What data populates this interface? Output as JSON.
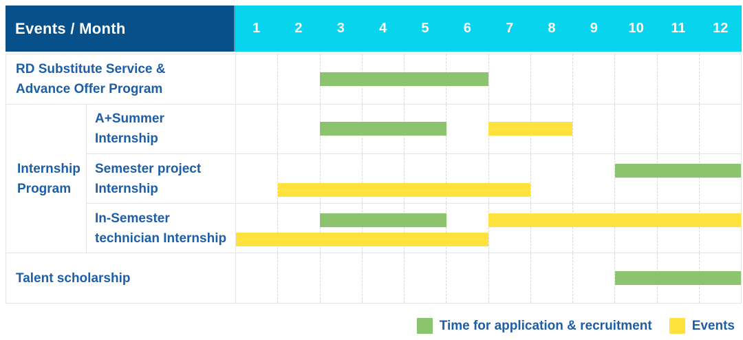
{
  "colors": {
    "header_navy": "#07508a",
    "header_cyan": "#08d4ee",
    "header_separator": "#5d90b8",
    "application_green": "#8cc46d",
    "event_yellow": "#ffe23d",
    "label_blue": "#1d5ea6",
    "grid_line": "#e5e5e5"
  },
  "header": {
    "title": "Events / Month",
    "months": [
      "1",
      "2",
      "3",
      "4",
      "5",
      "6",
      "7",
      "8",
      "9",
      "10",
      "11",
      "12"
    ]
  },
  "sections": [
    {
      "type": "single",
      "row": {
        "id": "rd-substitute-service",
        "label": "RD Substitute Service & Advance Offer Program",
        "label_lines": [
          "RD Substitute Service &",
          "Advance Offer Program"
        ],
        "bars": [
          {
            "kind": "application",
            "start_month": 3,
            "end_month": 6,
            "lane": "center"
          }
        ]
      }
    },
    {
      "type": "group",
      "label": "Internship Program",
      "label_lines": [
        "Internship",
        "Program"
      ],
      "rows": [
        {
          "id": "a-plus-summer-internship",
          "label": "A+Summer Internship",
          "label_lines": [
            "A+Summer",
            "Internship"
          ],
          "bars": [
            {
              "kind": "application",
              "start_month": 3,
              "end_month": 5,
              "lane": "center"
            },
            {
              "kind": "event",
              "start_month": 7,
              "end_month": 8,
              "lane": "center"
            }
          ]
        },
        {
          "id": "semester-project-internship",
          "label": "Semester project Internship",
          "label_lines": [
            "Semester project",
            "Internship"
          ],
          "bars": [
            {
              "kind": "application",
              "start_month": 10,
              "end_month": 12,
              "lane": "top"
            },
            {
              "kind": "event",
              "start_month": 2,
              "end_month": 7,
              "lane": "bottom"
            }
          ]
        },
        {
          "id": "in-semester-technician-internship",
          "label": "In-Semester technician Internship",
          "label_lines": [
            "In-Semester",
            "technician Internship"
          ],
          "bars": [
            {
              "kind": "application",
              "start_month": 3,
              "end_month": 5,
              "lane": "top"
            },
            {
              "kind": "event",
              "start_month": 7,
              "end_month": 12,
              "lane": "top"
            },
            {
              "kind": "event",
              "start_month": 1,
              "end_month": 6,
              "lane": "bottom"
            }
          ]
        }
      ]
    },
    {
      "type": "single",
      "row": {
        "id": "talent-scholarship",
        "label": "Talent scholarship",
        "label_lines": [
          "Talent scholarship"
        ],
        "bars": [
          {
            "kind": "application",
            "start_month": 10,
            "end_month": 12,
            "lane": "center"
          }
        ]
      }
    }
  ],
  "legend": {
    "items": [
      {
        "kind": "application",
        "label": "Time for application & recruitment"
      },
      {
        "kind": "event",
        "label": "Events"
      }
    ]
  },
  "chart_data": {
    "type": "bar",
    "subtype": "gantt",
    "title": "Events / Month",
    "x": {
      "label": "Month",
      "ticks": [
        1,
        2,
        3,
        4,
        5,
        6,
        7,
        8,
        9,
        10,
        11,
        12
      ],
      "range": [
        1,
        12
      ]
    },
    "grid": true,
    "legend_position": "bottom-right",
    "categories": [
      "RD Substitute Service & Advance Offer Program",
      "A+Summer Internship",
      "Semester project Internship",
      "In-Semester technician Internship",
      "Talent scholarship"
    ],
    "row_groups": [
      {
        "group": "Internship Program",
        "members": [
          "A+Summer Internship",
          "Semester project Internship",
          "In-Semester technician Internship"
        ]
      }
    ],
    "series": [
      {
        "name": "Time for application & recruitment",
        "color": "#8cc46d",
        "bars": [
          {
            "row": "RD Substitute Service & Advance Offer Program",
            "start_month": 3,
            "end_month": 6
          },
          {
            "row": "A+Summer Internship",
            "start_month": 3,
            "end_month": 5
          },
          {
            "row": "Semester project Internship",
            "start_month": 10,
            "end_month": 12
          },
          {
            "row": "In-Semester technician Internship",
            "start_month": 3,
            "end_month": 5
          },
          {
            "row": "Talent scholarship",
            "start_month": 10,
            "end_month": 12
          }
        ]
      },
      {
        "name": "Events",
        "color": "#ffe23d",
        "bars": [
          {
            "row": "A+Summer Internship",
            "start_month": 7,
            "end_month": 8
          },
          {
            "row": "Semester project Internship",
            "start_month": 2,
            "end_month": 7
          },
          {
            "row": "In-Semester technician Internship",
            "start_month": 7,
            "end_month": 12
          },
          {
            "row": "In-Semester technician Internship",
            "start_month": 1,
            "end_month": 6
          }
        ]
      }
    ]
  }
}
